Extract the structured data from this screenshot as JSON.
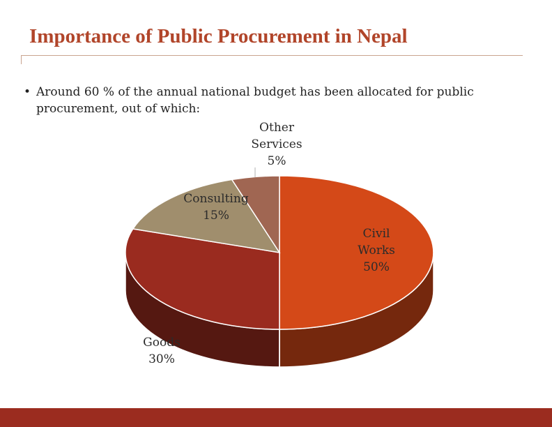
{
  "slide": {
    "title": "Importance of Public Procurement in Nepal",
    "bullet_marker": "•",
    "bullet_line1": "Around 60 % of the annual national budget has been allocated for public",
    "bullet_line2": "procurement, out of which:"
  },
  "colors": {
    "title": "#b1452a",
    "footer_bar": "#9b2c1f",
    "civil_works": "#d44918",
    "goods": "#9a2b1f",
    "consulting": "#a08e6d",
    "other_services": "#a06652"
  },
  "chart_data": {
    "type": "pie",
    "style": "3d",
    "title": "",
    "slices": [
      {
        "label": "Civil Works",
        "label_lines": [
          "Civil",
          "Works"
        ],
        "value": 50,
        "value_label": "50%"
      },
      {
        "label": "Goods",
        "label_lines": [
          "Goods"
        ],
        "value": 30,
        "value_label": "30%"
      },
      {
        "label": "Consulting",
        "label_lines": [
          "Consulting"
        ],
        "value": 15,
        "value_label": "15%"
      },
      {
        "label": "Other Services",
        "label_lines": [
          "Other",
          "Services"
        ],
        "value": 5,
        "value_label": "5%"
      }
    ]
  }
}
